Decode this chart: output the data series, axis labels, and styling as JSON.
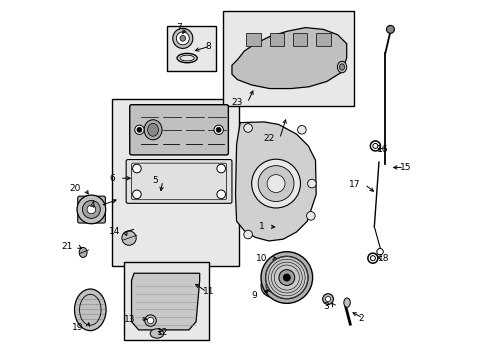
{
  "bg_color": "#ffffff",
  "line_color": "#000000",
  "gray_fill": "#d8d8d8",
  "light_gray": "#e8e8e8",
  "mid_gray": "#c0c0c0",
  "dark_gray": "#a0a0a0"
}
